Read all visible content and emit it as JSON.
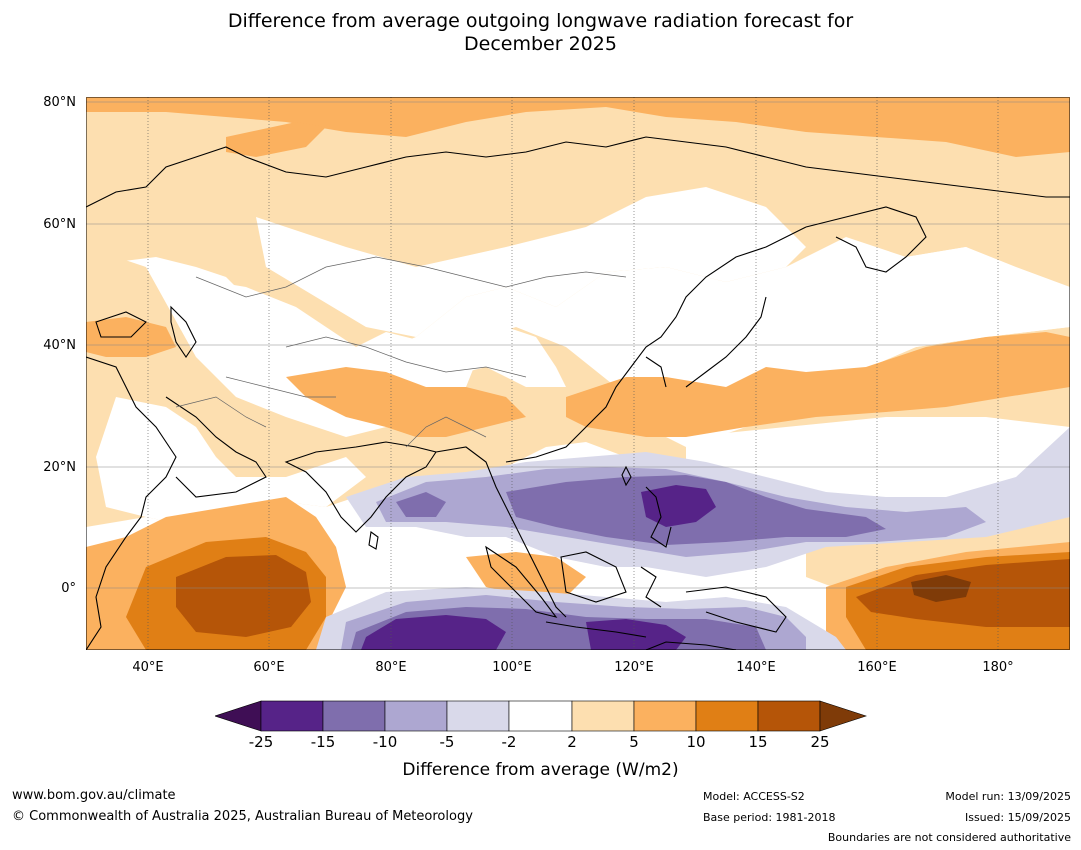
{
  "title_line1": "Difference from average outgoing longwave radiation forecast for",
  "title_line2": "December 2025",
  "map": {
    "lat_labels": [
      "80°N",
      "60°N",
      "40°N",
      "20°N",
      "0°"
    ],
    "lon_labels": [
      "40°E",
      "60°E",
      "80°E",
      "100°E",
      "120°E",
      "140°E",
      "160°E",
      "180°"
    ]
  },
  "colorbar": {
    "ticks": [
      "-25",
      "-15",
      "-10",
      "-5",
      "-2",
      "2",
      "5",
      "10",
      "15",
      "25"
    ],
    "colors": [
      "#3f0e55",
      "#562388",
      "#7f6ead",
      "#ada7d1",
      "#d9d9ea",
      "#ffffff",
      "#fddfb0",
      "#fbb15f",
      "#e07f15",
      "#b55508",
      "#7f3b08"
    ],
    "title": "Difference from average (W/m2)"
  },
  "footer": {
    "url": "www.bom.gov.au/climate",
    "copyright": "© Commonwealth of Australia 2025, Australian Bureau of Meteorology",
    "model": "Model: ACCESS-S2",
    "base_period": "Base period: 1981-2018",
    "model_run": "Model run: 13/09/2025",
    "issued": "Issued: 15/09/2025",
    "boundaries_note": "Boundaries are not considered authoritative"
  }
}
